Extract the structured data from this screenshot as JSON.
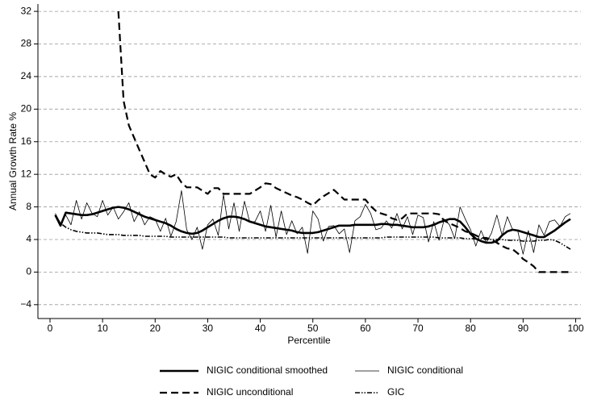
{
  "chart_data": {
    "type": "line",
    "y_label": "Annual Growth Rate %",
    "x_label": "Percentile",
    "x": [
      1,
      2,
      3,
      4,
      5,
      6,
      7,
      8,
      9,
      10,
      11,
      12,
      13,
      14,
      15,
      16,
      17,
      18,
      19,
      20,
      21,
      22,
      23,
      24,
      25,
      26,
      27,
      28,
      29,
      30,
      31,
      32,
      33,
      34,
      35,
      36,
      37,
      38,
      39,
      40,
      41,
      42,
      43,
      44,
      45,
      46,
      47,
      48,
      49,
      50,
      51,
      52,
      53,
      54,
      55,
      56,
      57,
      58,
      59,
      60,
      61,
      62,
      63,
      64,
      65,
      66,
      67,
      68,
      69,
      70,
      71,
      72,
      73,
      74,
      75,
      76,
      77,
      78,
      79,
      80,
      81,
      82,
      83,
      84,
      85,
      86,
      87,
      88,
      89,
      90,
      91,
      92,
      93,
      94,
      95,
      96,
      97,
      98,
      99
    ],
    "series": [
      {
        "name": "NIGIC conditional smoothed",
        "color": "#000000",
        "linestyle": "thick",
        "values": [
          7,
          5.7,
          7.3,
          7.2,
          7.1,
          7,
          7,
          7.1,
          7.3,
          7.5,
          7.7,
          7.9,
          8,
          7.9,
          7.7,
          7.4,
          7.1,
          6.8,
          6.6,
          6.4,
          6.2,
          6,
          5.7,
          5.3,
          5,
          4.8,
          4.7,
          4.8,
          5.1,
          5.5,
          5.9,
          6.3,
          6.6,
          6.8,
          6.8,
          6.7,
          6.5,
          6.2,
          6,
          5.8,
          5.6,
          5.5,
          5.4,
          5.3,
          5.2,
          5.1,
          4.9,
          4.8,
          4.8,
          4.8,
          4.9,
          5.1,
          5.3,
          5.5,
          5.7,
          5.7,
          5.7,
          5.8,
          5.8,
          5.8,
          5.8,
          5.8,
          5.9,
          5.9,
          5.8,
          5.8,
          5.7,
          5.6,
          5.5,
          5.5,
          5.5,
          5.6,
          5.8,
          6.1,
          6.3,
          6.5,
          6.5,
          6.2,
          5.5,
          4.7,
          4.1,
          3.8,
          3.6,
          3.6,
          3.8,
          4.5,
          5,
          5.2,
          5.1,
          4.9,
          4.7,
          4.5,
          4.3,
          4.3,
          4.7,
          5.1,
          5.6,
          6.1,
          6.5
        ]
      },
      {
        "name": "NIGIC conditional",
        "color": "#000000",
        "linestyle": "thin",
        "values": [
          7.2,
          6,
          7,
          5.8,
          8.8,
          6.5,
          8.5,
          7.2,
          6.8,
          8.8,
          7,
          8,
          6.5,
          7.4,
          8.5,
          6.2,
          7.4,
          5.8,
          6.8,
          6.5,
          5,
          6.6,
          4.4,
          6.2,
          10,
          5.2,
          4,
          5.5,
          2.8,
          5.8,
          6.5,
          4.5,
          9.5,
          5.3,
          8.5,
          5,
          8.7,
          6.1,
          6.2,
          7.5,
          5,
          8.2,
          4.3,
          7.5,
          4.6,
          6.3,
          4.7,
          5.5,
          2.3,
          7.5,
          6.5,
          3.8,
          5.6,
          5.7,
          4.7,
          5.3,
          2.4,
          6.3,
          6.8,
          8.3,
          7.2,
          5.2,
          5.4,
          6.3,
          5.4,
          7.2,
          5.3,
          6.8,
          4.6,
          7,
          6.7,
          3.7,
          6.2,
          3.9,
          6.5,
          5.8,
          4.1,
          8,
          6.5,
          5.2,
          3.2,
          5.1,
          3.6,
          4.8,
          7,
          4.5,
          6.8,
          5.2,
          5,
          2.2,
          5.1,
          2.4,
          5.8,
          4.5,
          6.2,
          6.4,
          5.6,
          6.8,
          7.2
        ]
      },
      {
        "name": "NIGIC unconditional",
        "color": "#000000",
        "linestyle": "dashed",
        "values": [
          null,
          null,
          null,
          null,
          null,
          null,
          null,
          null,
          null,
          null,
          null,
          null,
          32,
          21,
          18,
          16.5,
          15,
          13.5,
          12,
          11.6,
          12.4,
          12,
          11.7,
          12,
          11,
          10.4,
          10.4,
          10.4,
          10,
          9.6,
          10.3,
          10.3,
          9.6,
          9.6,
          9.6,
          9.6,
          9.6,
          9.6,
          10,
          10.4,
          10.9,
          10.8,
          10.3,
          10,
          9.7,
          9.4,
          9.2,
          8.9,
          8.5,
          8.2,
          8.8,
          9.3,
          9.7,
          10.1,
          9.5,
          8.9,
          8.9,
          8.9,
          8.9,
          8.9,
          8.1,
          7.5,
          7.2,
          7,
          6.6,
          6.4,
          6.6,
          7.2,
          7.2,
          7.2,
          7.2,
          7.2,
          7.2,
          7.1,
          6.3,
          6,
          5.7,
          5.4,
          5,
          4.8,
          4.5,
          4.2,
          4.2,
          4,
          3.6,
          3.2,
          2.9,
          2.8,
          2.3,
          1.6,
          1.2,
          0.7,
          0,
          0,
          0,
          0,
          0,
          0,
          0
        ]
      },
      {
        "name": "GIC",
        "color": "#000000",
        "linestyle": "dashdot",
        "values": [
          7,
          6,
          5.5,
          5.2,
          5,
          4.9,
          4.8,
          4.8,
          4.8,
          4.7,
          4.6,
          4.6,
          4.6,
          4.5,
          4.5,
          4.5,
          4.5,
          4.4,
          4.4,
          4.4,
          4.4,
          4.4,
          4.3,
          4.3,
          4.3,
          4.3,
          4.3,
          4.3,
          4.3,
          4.3,
          4.3,
          4.3,
          4.3,
          4.2,
          4.2,
          4.2,
          4.2,
          4.2,
          4.2,
          4.2,
          4.2,
          4.2,
          4.2,
          4.2,
          4.2,
          4.2,
          4.2,
          4.2,
          4.2,
          4.2,
          4.2,
          4.2,
          4.2,
          4.2,
          4.2,
          4.2,
          4.2,
          4.2,
          4.2,
          4.2,
          4.2,
          4.2,
          4.2,
          4.3,
          4.3,
          4.3,
          4.3,
          4.3,
          4.3,
          4.3,
          4.3,
          4.3,
          4.3,
          4.2,
          4.2,
          4.2,
          4.2,
          4.2,
          4.1,
          4.1,
          4.1,
          4.1,
          4,
          4,
          4,
          4,
          3.9,
          3.9,
          3.9,
          3.8,
          3.8,
          3.8,
          3.9,
          3.9,
          4,
          3.9,
          3.6,
          3.2,
          2.8
        ]
      }
    ],
    "xlim": [
      -2.3,
      101
    ],
    "ylim": [
      -5.7,
      32.9
    ],
    "xticks": [
      0,
      10,
      20,
      30,
      40,
      50,
      60,
      70,
      80,
      90,
      100
    ],
    "yticks": [
      {
        "value": -4,
        "label": "−4"
      },
      0,
      4,
      8,
      12,
      16,
      20,
      24,
      28,
      32
    ],
    "grid": true,
    "legend": "bottom"
  }
}
